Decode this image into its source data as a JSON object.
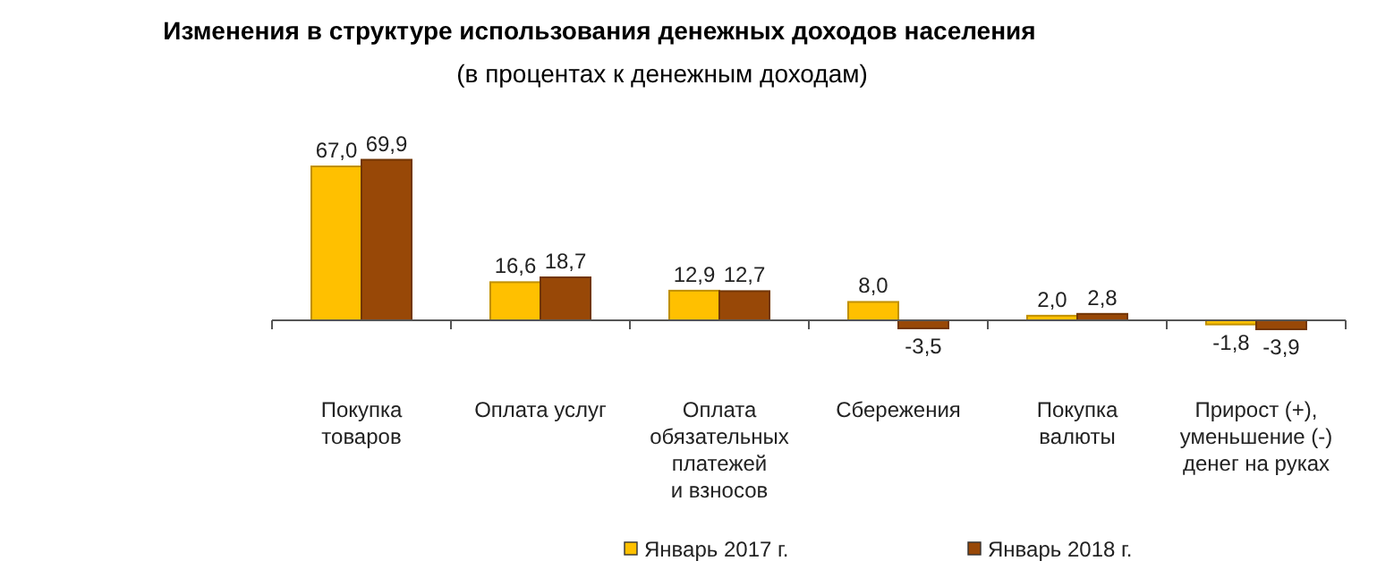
{
  "chart_data": {
    "type": "bar",
    "title": "Изменения в структуре использования денежных доходов населения",
    "subtitle": "(в процентах к денежным доходам)",
    "categories": [
      "Покупка\nтоваров",
      "Оплата услуг",
      "Оплата\nобязательных\nплатежей\nи взносов",
      "Сбережения",
      "Покупка\nвалюты",
      "Прирост (+),\nуменьшение (-)\nденег на руках"
    ],
    "series": [
      {
        "name": "Январь 2017 г.",
        "color": "#ffc000",
        "values": [
          67.0,
          16.6,
          12.9,
          8.0,
          2.0,
          -1.8
        ],
        "value_labels": [
          "67,0",
          "16,6",
          "12,9",
          "8,0",
          "2,0",
          "-1,8"
        ]
      },
      {
        "name": "Январь 2018 г.",
        "color": "#984807",
        "values": [
          69.9,
          18.7,
          12.7,
          -3.5,
          2.8,
          -3.9
        ],
        "value_labels": [
          "69,9",
          "18,7",
          "12,7",
          "-3,5",
          "2,8",
          "-3,9"
        ]
      }
    ],
    "legend": "bottom",
    "grid": false
  }
}
